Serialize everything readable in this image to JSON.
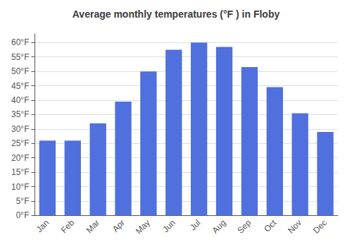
{
  "chart_data": {
    "type": "bar",
    "title": "Average monthly temperatures (°F ) in Floby",
    "categories": [
      "Jan",
      "Feb",
      "Mar",
      "Apr",
      "May",
      "Jun",
      "Jul",
      "Aug",
      "Sep",
      "Oct",
      "Nov",
      "Dec"
    ],
    "values": [
      26,
      26,
      32,
      39.5,
      50,
      57.5,
      60,
      58.5,
      51.5,
      44.5,
      35.5,
      29
    ],
    "ylim": [
      0,
      63
    ],
    "yticks": [
      {
        "value": 0,
        "label": "0°F"
      },
      {
        "value": 5,
        "label": "5°F"
      },
      {
        "value": 10,
        "label": "10°F"
      },
      {
        "value": 15,
        "label": "15°F"
      },
      {
        "value": 20,
        "label": "20°F"
      },
      {
        "value": 25,
        "label": "25°F"
      },
      {
        "value": 30,
        "label": "30°F"
      },
      {
        "value": 35,
        "label": "35°F"
      },
      {
        "value": 40,
        "label": "40°F"
      },
      {
        "value": 45,
        "label": "45°F"
      },
      {
        "value": 50,
        "label": "50°F"
      },
      {
        "value": 55,
        "label": "55°F"
      },
      {
        "value": 60,
        "label": "60°F"
      }
    ],
    "grid": true
  }
}
